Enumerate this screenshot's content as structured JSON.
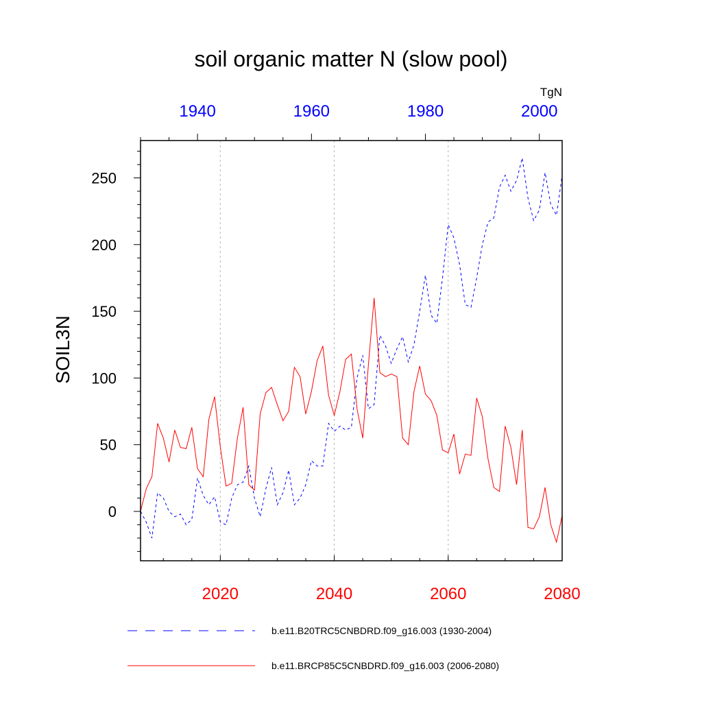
{
  "chart_data": {
    "type": "line",
    "title": "soil organic matter N (slow pool)",
    "ylabel": "SOIL3N",
    "units": "TgN",
    "ylim": [
      -37,
      278
    ],
    "yticks": [
      0,
      50,
      100,
      150,
      200,
      250
    ],
    "x_bottom": {
      "range": [
        2006,
        2080
      ],
      "ticks": [
        2020,
        2040,
        2060,
        2080
      ],
      "color": "#ff0000"
    },
    "x_top": {
      "range": [
        1930,
        2004
      ],
      "ticks": [
        1940,
        1960,
        1980,
        2000
      ],
      "color": "#0000ff"
    },
    "gridlines_x": [
      2020,
      2040,
      2060
    ],
    "series": [
      {
        "name": "b.e11.B20TRC5CNBDRD.f09_g16.003 (1930-2004)",
        "axis": "top",
        "color": "#0000ff",
        "style": "dashed",
        "x_start": 1930,
        "values": [
          0,
          -8,
          -20,
          14,
          10,
          0,
          -4,
          -2,
          -10,
          -6,
          25,
          12,
          5,
          11,
          -8,
          -10,
          10,
          20,
          22,
          34,
          10,
          -4,
          17,
          33,
          5,
          14,
          31,
          5,
          10,
          20,
          38,
          34,
          34,
          66,
          60,
          64,
          61,
          63,
          100,
          117,
          77,
          80,
          132,
          124,
          111,
          122,
          131,
          112,
          125,
          150,
          177,
          147,
          141,
          175,
          215,
          205,
          185,
          155,
          153,
          175,
          200,
          217,
          220,
          243,
          252,
          240,
          248,
          265,
          235,
          218,
          226,
          254,
          230,
          222,
          252
        ]
      },
      {
        "name": "b.e11.BRCP85C5CNBDRD.f09_g16.003 (2006-2080)",
        "axis": "bottom",
        "color": "#ff0000",
        "style": "solid",
        "x_start": 2006,
        "values": [
          0,
          17,
          26,
          66,
          55,
          37,
          61,
          48,
          47,
          63,
          32,
          26,
          69,
          86,
          48,
          19,
          21,
          55,
          78,
          20,
          16,
          73,
          89,
          93,
          80,
          68,
          75,
          108,
          101,
          73,
          90,
          113,
          124,
          87,
          72,
          90,
          114,
          118,
          77,
          55,
          110,
          160,
          104,
          101,
          103,
          101,
          55,
          50,
          90,
          109,
          88,
          83,
          72,
          46,
          44,
          58,
          28,
          43,
          42,
          85,
          71,
          39,
          18,
          15,
          64,
          48,
          20,
          61,
          -12,
          -13,
          -4,
          18,
          -10,
          -23,
          -3
        ]
      }
    ]
  }
}
